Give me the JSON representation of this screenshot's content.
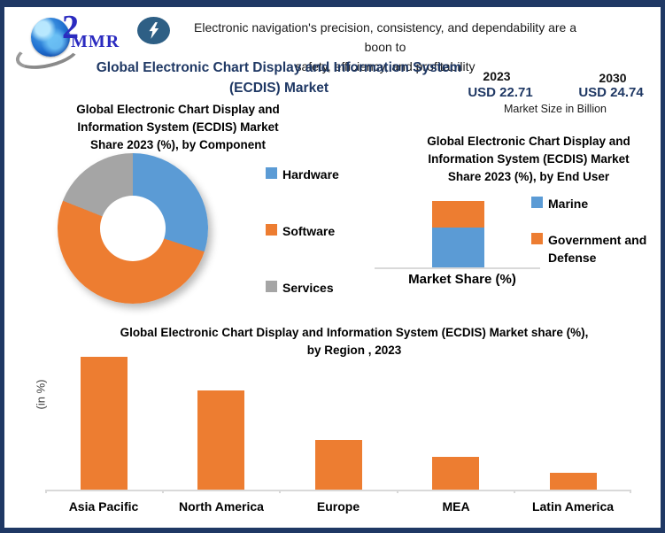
{
  "colors": {
    "navy": "#1F3864",
    "series_blue": "#5B9BD5",
    "series_orange": "#ED7D31",
    "series_gray": "#A5A5A5",
    "axis_gray": "#D9D9D9",
    "bolt_badge_blue": "#2E5F85",
    "logo_blue": "#2B2BC0"
  },
  "header": {
    "logo": {
      "text": "MMR"
    },
    "tagline": {
      "line1": "Electronic navigation's precision, consistency, and dependability are a boon to",
      "line2": "safety, efficiency, and profitability"
    }
  },
  "title": {
    "full": "Global Electronic Chart Display and Information System (ECDIS) Market",
    "line1": "Global Electronic Chart Display and Information System",
    "line2": "(ECDIS) Market"
  },
  "market_size": {
    "start_year": "2023",
    "start_value": "USD 22.71",
    "end_year": "2030",
    "end_value": "USD 24.74",
    "caption": "Market Size in Billion"
  },
  "chart_data": [
    {
      "type": "pie",
      "subtype": "donut",
      "title": "Global Electronic Chart Display and Information System (ECDIS) Market Share 2023 (%), by Component",
      "title_lines": [
        "Global Electronic Chart Display and",
        "Information System (ECDIS) Market",
        "Share 2023 (%), by Component"
      ],
      "categories": [
        "Hardware",
        "Software",
        "Services"
      ],
      "values": [
        30,
        51,
        19
      ],
      "colors": [
        "#5B9BD5",
        "#ED7D31",
        "#A5A5A5"
      ],
      "legend_position": "right"
    },
    {
      "type": "bar",
      "subtype": "stacked",
      "title": "Global Electronic Chart Display and Information System (ECDIS) Market Share 2023 (%), by End User",
      "title_lines": [
        "Global Electronic Chart Display and",
        "Information System (ECDIS) Market",
        "Share 2023 (%), by End User"
      ],
      "categories": [
        "Market Share (%)"
      ],
      "series": [
        {
          "name": "Marine",
          "values": [
            60
          ],
          "color": "#5B9BD5"
        },
        {
          "name": "Government and Defense",
          "values": [
            40
          ],
          "color": "#ED7D31"
        }
      ],
      "ylim": [
        0,
        100
      ],
      "legend_position": "right",
      "grid": false
    },
    {
      "type": "bar",
      "title": "Global Electronic Chart Display and Information System (ECDIS) Market share (%), by Region , 2023",
      "title_lines": [
        "Global Electronic Chart Display and Information System (ECDIS) Market share (%),",
        "by Region , 2023"
      ],
      "categories": [
        "Asia Pacific",
        "North America",
        "Europe",
        "MEA",
        "Latin America"
      ],
      "values": [
        40,
        30,
        15,
        10,
        5
      ],
      "color": "#ED7D31",
      "ylabel": "(in %)",
      "ylim": [
        0,
        42
      ],
      "grid": false
    }
  ]
}
